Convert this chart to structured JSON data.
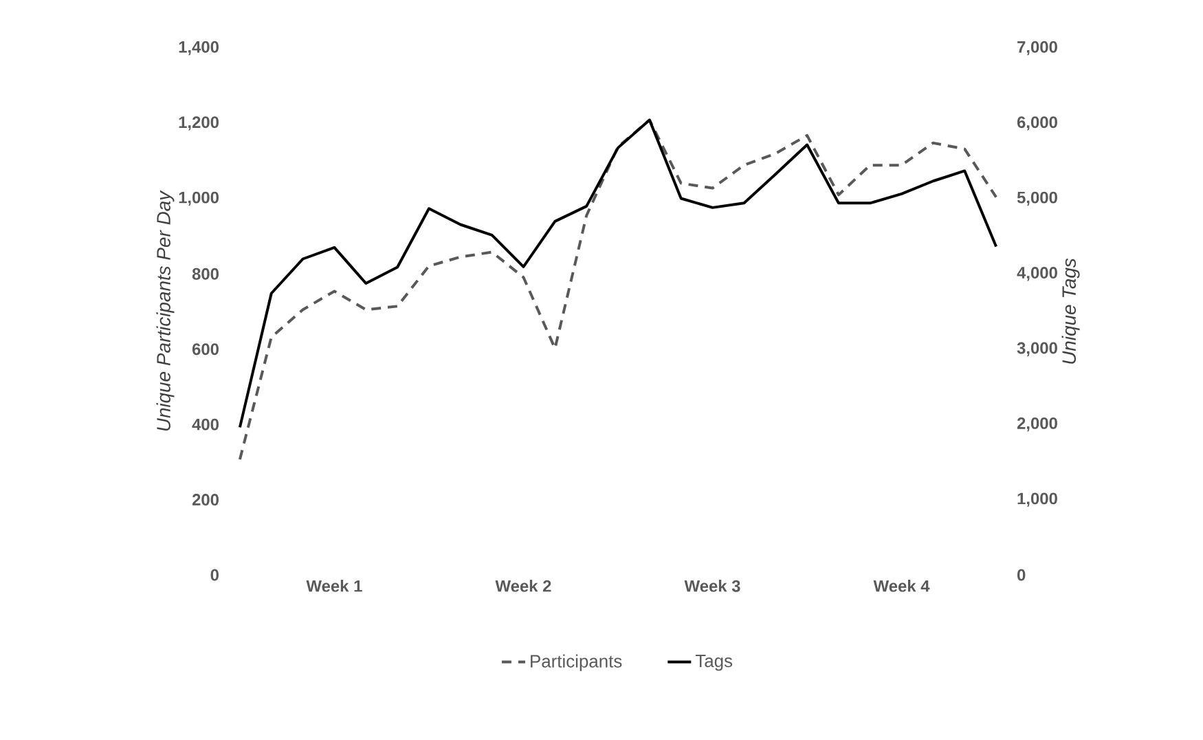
{
  "chart_data": {
    "type": "line",
    "categories": [
      null,
      null,
      null,
      "Week 1",
      null,
      null,
      null,
      null,
      null,
      "Week 2",
      null,
      null,
      null,
      null,
      null,
      "Week 3",
      null,
      null,
      null,
      null,
      null,
      "Week 4",
      null,
      null,
      null
    ],
    "series": [
      {
        "name": "Participants",
        "color": "#595959",
        "line_style": "dashed",
        "values": [
          307,
          632,
          705,
          754,
          705,
          714,
          821,
          845,
          858,
          791,
          602,
          955,
          1138,
          1209,
          1041,
          1028,
          1089,
          1120,
          1168,
          1010,
          1089,
          1089,
          1148,
          1132,
          1004
        ]
      },
      {
        "name": "Tags",
        "color": "#000000",
        "line_style": "solid",
        "axis": "y2",
        "values": [
          1961,
          3742,
          4199,
          4351,
          3875,
          4089,
          4868,
          4656,
          4515,
          4095,
          4698,
          4899,
          5676,
          6045,
          5003,
          4881,
          4941,
          5325,
          5716,
          4941,
          4941,
          5064,
          5234,
          5369,
          4363
        ]
      }
    ],
    "ylabel": "Unique Participants Per Day",
    "y2label": "Unique Tags",
    "ylim": [
      0,
      1400
    ],
    "yticks": [
      0,
      200,
      400,
      600,
      800,
      {
        "value": 1000,
        "label": "1,000"
      },
      {
        "value": 1200,
        "label": "1,200"
      },
      {
        "value": 1400,
        "label": "1,400"
      }
    ],
    "y2lim": [
      0,
      7000
    ],
    "y2ticks": [
      0,
      {
        "value": 1000,
        "label": "1,000"
      },
      {
        "value": 2000,
        "label": "2,000"
      },
      {
        "value": 3000,
        "label": "3,000"
      },
      {
        "value": 4000,
        "label": "4,000"
      },
      {
        "value": 5000,
        "label": "5,000"
      },
      {
        "value": 6000,
        "label": "6,000"
      },
      {
        "value": 7000,
        "label": "7,000"
      }
    ],
    "legend": "bottom"
  }
}
